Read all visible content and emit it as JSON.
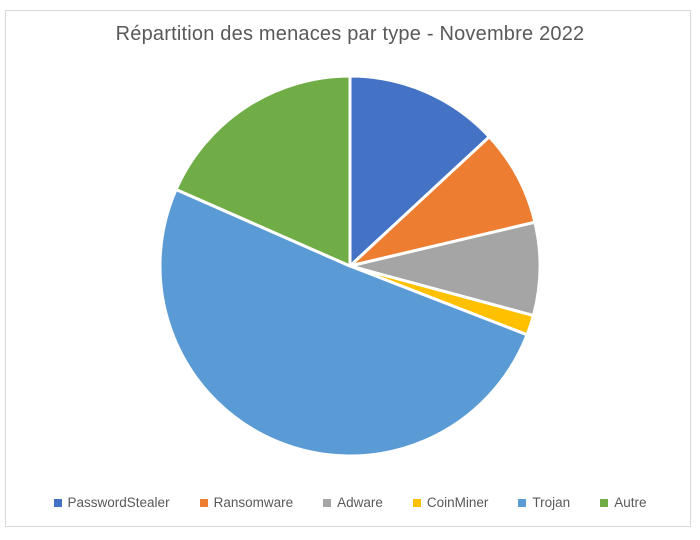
{
  "chart_data": {
    "type": "pie",
    "title": "Répartition des menaces par type - Novembre 2022",
    "unit": "percent (estimated from slice angles)",
    "labels": [
      "PasswordStealer",
      "Ransomware",
      "Adware",
      "CoinMiner",
      "Trojan",
      "Autre"
    ],
    "values": [
      13.1,
      8.2,
      7.9,
      1.7,
      50.7,
      18.4
    ],
    "colors": [
      "#4472C4",
      "#ED7D31",
      "#A5A5A5",
      "#FFC000",
      "#5B9BD5",
      "#70AD47"
    ],
    "start_angle_deg": 0,
    "direction": "clockwise",
    "slice_border_color": "#FFFFFF",
    "legend_position": "bottom",
    "legend_marker": "square",
    "text_color": "#595959",
    "frame_border_color": "#D9D9D9"
  }
}
